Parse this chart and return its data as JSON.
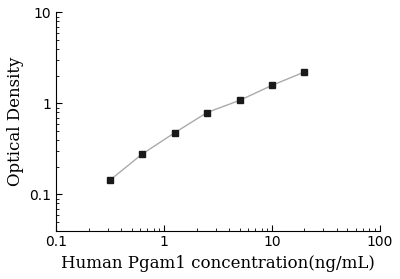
{
  "x": [
    0.313,
    0.625,
    1.25,
    2.5,
    5,
    10,
    20
  ],
  "y": [
    0.143,
    0.278,
    0.476,
    0.795,
    1.08,
    1.58,
    2.22
  ],
  "xlabel": "Human Pgam1 concentration(ng/mL)",
  "ylabel": "Optical Density",
  "xlim": [
    0.1,
    100
  ],
  "ylim": [
    0.04,
    10
  ],
  "xticks": [
    0.1,
    1,
    10,
    100
  ],
  "yticks": [
    0.1,
    1,
    10
  ],
  "marker": "s",
  "marker_color": "#1a1a1a",
  "line_color": "#aaaaaa",
  "line_style": "-",
  "marker_size": 5,
  "bg_color": "#ffffff",
  "axis_label_fontsize": 12,
  "tick_fontsize": 10
}
